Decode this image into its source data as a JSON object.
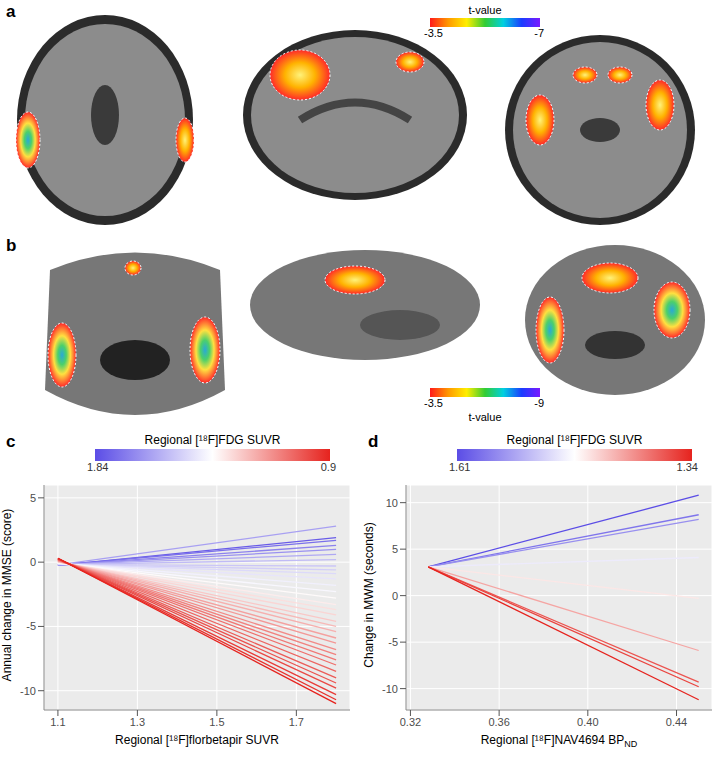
{
  "chart_data": [
    {
      "type": "image",
      "panel": "a",
      "colorbar": {
        "title": "t-value",
        "range": [
          -3.5,
          -7
        ],
        "ticks": [
          -3.5,
          -7
        ]
      }
    },
    {
      "type": "image",
      "panel": "b",
      "colorbar": {
        "title": "t-value",
        "range": [
          -3.5,
          -9
        ],
        "ticks": [
          -3.5,
          -9
        ]
      }
    },
    {
      "type": "line",
      "panel": "c",
      "x_label": "Regional [¹⁸F]florbetapir SUVR",
      "y_label": "Annual change in MMSE (score)",
      "xlim": [
        1.065,
        1.835
      ],
      "ylim": [
        -11.5,
        6
      ],
      "xticks": [
        1.1,
        1.3,
        1.5,
        1.7
      ],
      "yticks": [
        -10,
        -5,
        0,
        5
      ],
      "grid": true,
      "colorbar": {
        "title": "Regional [¹⁸F]FDG SUVR",
        "range": [
          1.84,
          0.9
        ],
        "ticks": [
          1.84,
          0.9
        ]
      },
      "x": [
        1.1,
        1.8
      ],
      "series": [
        {
          "color_value": 1.62,
          "values": [
            -0.22,
            2.8
          ]
        },
        {
          "color_value": 1.8,
          "values": [
            -0.25,
            1.9
          ]
        },
        {
          "color_value": 1.75,
          "values": [
            -0.24,
            1.7
          ]
        },
        {
          "color_value": 1.7,
          "values": [
            -0.23,
            1.3
          ]
        },
        {
          "color_value": 1.66,
          "values": [
            -0.22,
            1.0
          ]
        },
        {
          "color_value": 1.6,
          "values": [
            -0.2,
            0.6
          ]
        },
        {
          "color_value": 1.55,
          "values": [
            -0.19,
            0.2
          ]
        },
        {
          "color_value": 1.52,
          "values": [
            -0.18,
            -0.3
          ]
        },
        {
          "color_value": 1.5,
          "values": [
            -0.17,
            -0.6
          ]
        },
        {
          "color_value": 1.47,
          "values": [
            -0.15,
            -0.9
          ]
        },
        {
          "color_value": 1.44,
          "values": [
            -0.12,
            -1.3
          ]
        },
        {
          "color_value": 1.41,
          "values": [
            -0.1,
            -1.8
          ]
        },
        {
          "color_value": 1.39,
          "values": [
            -0.08,
            -2.3
          ]
        },
        {
          "color_value": 1.36,
          "values": [
            -0.05,
            -2.8
          ]
        },
        {
          "color_value": 1.33,
          "values": [
            -0.02,
            -3.3
          ]
        },
        {
          "color_value": 1.3,
          "values": [
            0.0,
            -3.7
          ]
        },
        {
          "color_value": 1.28,
          "values": [
            0.02,
            -4.1
          ]
        },
        {
          "color_value": 1.25,
          "values": [
            0.04,
            -4.6
          ]
        },
        {
          "color_value": 1.22,
          "values": [
            0.06,
            -5.0
          ]
        },
        {
          "color_value": 1.2,
          "values": [
            0.08,
            -5.4
          ]
        },
        {
          "color_value": 1.17,
          "values": [
            0.1,
            -5.9
          ]
        },
        {
          "color_value": 1.15,
          "values": [
            0.12,
            -6.3
          ]
        },
        {
          "color_value": 1.12,
          "values": [
            0.14,
            -6.8
          ]
        },
        {
          "color_value": 1.1,
          "values": [
            0.16,
            -7.2
          ]
        },
        {
          "color_value": 1.08,
          "values": [
            0.18,
            -7.6
          ]
        },
        {
          "color_value": 1.06,
          "values": [
            0.2,
            -8.0
          ]
        },
        {
          "color_value": 1.04,
          "values": [
            0.22,
            -8.5
          ]
        },
        {
          "color_value": 1.02,
          "values": [
            0.24,
            -9.0
          ]
        },
        {
          "color_value": 1.0,
          "values": [
            0.26,
            -9.4
          ]
        },
        {
          "color_value": 0.98,
          "values": [
            0.27,
            -9.8
          ]
        },
        {
          "color_value": 0.95,
          "values": [
            0.28,
            -10.3
          ]
        },
        {
          "color_value": 0.93,
          "values": [
            0.29,
            -10.7
          ]
        },
        {
          "color_value": 0.9,
          "values": [
            0.3,
            -11.0
          ]
        }
      ]
    },
    {
      "type": "line",
      "panel": "d",
      "x_label": "Regional [¹⁸F]NAV4694 BP",
      "x_label_subscript": "ND",
      "y_label": "Change in MWM (seconds)",
      "xlim": [
        0.318,
        0.456
      ],
      "ylim": [
        -12.3,
        11.9
      ],
      "xticks": [
        0.32,
        0.36,
        {
          "value": 0.4,
          "label": "0.40"
        },
        0.44
      ],
      "yticks": [
        -10,
        -5,
        0,
        5,
        10
      ],
      "grid": true,
      "colorbar": {
        "title": "Regional [¹⁸F]FDG SUVR",
        "range": [
          1.61,
          1.34
        ],
        "ticks": [
          1.61,
          1.34
        ]
      },
      "x": [
        0.328,
        0.45
      ],
      "series": [
        {
          "color_value": 1.61,
          "values": [
            3.1,
            10.8
          ]
        },
        {
          "color_value": 1.58,
          "values": [
            3.1,
            8.7
          ]
        },
        {
          "color_value": 1.56,
          "values": [
            3.1,
            8.2
          ]
        },
        {
          "color_value": 1.49,
          "values": [
            3.1,
            4.1
          ]
        },
        {
          "color_value": 1.46,
          "values": [
            3.1,
            -0.3
          ]
        },
        {
          "color_value": 1.42,
          "values": [
            3.1,
            -5.9
          ]
        },
        {
          "color_value": 1.37,
          "values": [
            3.1,
            -9.3
          ]
        },
        {
          "color_value": 1.36,
          "values": [
            3.1,
            -9.8
          ]
        },
        {
          "color_value": 1.34,
          "values": [
            3.1,
            -11.2
          ]
        }
      ]
    }
  ]
}
